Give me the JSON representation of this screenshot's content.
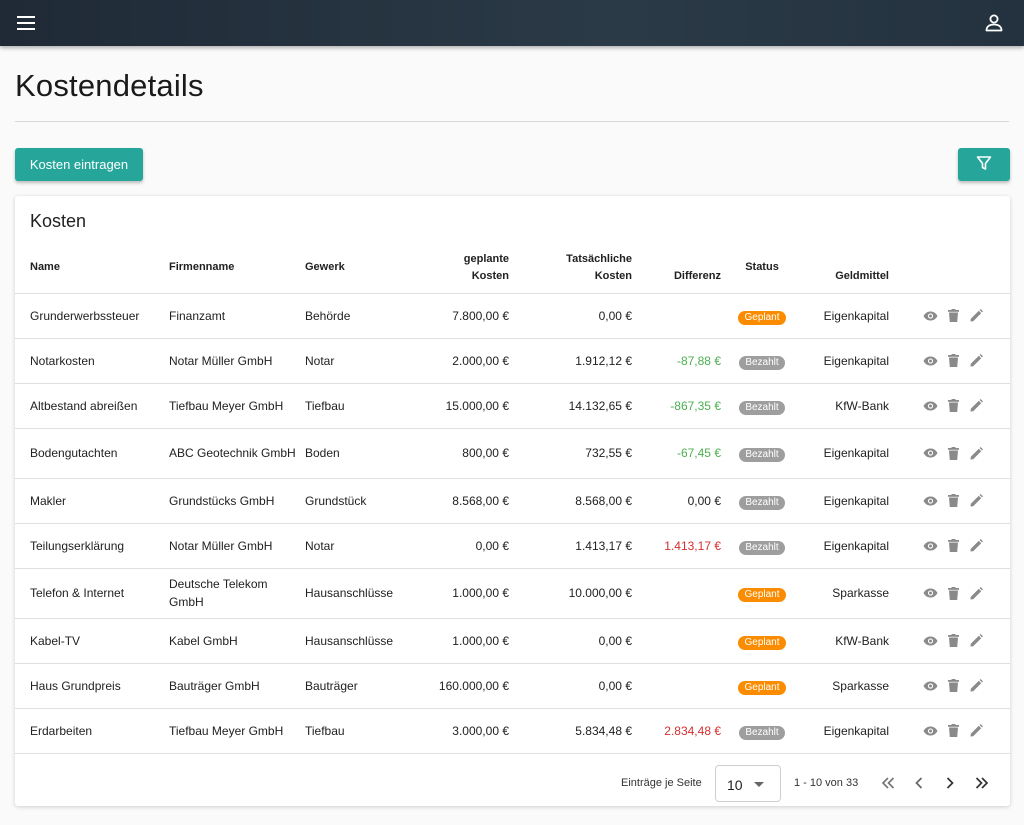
{
  "header": {
    "menu_icon": "menu-icon",
    "account_icon": "account-icon",
    "bar_color": "#243240"
  },
  "page": {
    "title": "Kostendetails"
  },
  "toolbar": {
    "add_label": "Kosten eintragen",
    "filter_icon": "filter-icon",
    "accent": "#26a69a"
  },
  "card": {
    "title": "Kosten"
  },
  "table": {
    "columns": {
      "name": "Name",
      "company": "Firmenname",
      "trade": "Gewerk",
      "planned_1": "geplante",
      "planned_2": "Kosten",
      "actual_1": "Tatsächliche",
      "actual_2": "Kosten",
      "difference": "Differenz",
      "status": "Status",
      "funds": "Geldmittel"
    },
    "rows": [
      {
        "name": "Grunderwerbssteuer",
        "company": "Finanzamt",
        "trade": "Behörde",
        "planned": "7.800,00 €",
        "actual": "0,00 €",
        "difference": "",
        "diff_type": "none",
        "status": "Geplant",
        "status_type": "planned",
        "funds": "Eigenkapital"
      },
      {
        "name": "Notarkosten",
        "company": "Notar Müller GmbH",
        "trade": "Notar",
        "planned": "2.000,00 €",
        "actual": "1.912,12 €",
        "difference": "-87,88 €",
        "diff_type": "green",
        "status": "Bezahlt",
        "status_type": "paid",
        "funds": "Eigenkapital"
      },
      {
        "name": "Altbestand abreißen",
        "company": "Tiefbau Meyer GmbH",
        "trade": "Tiefbau",
        "planned": "15.000,00 €",
        "actual": "14.132,65 €",
        "difference": "-867,35 €",
        "diff_type": "green",
        "status": "Bezahlt",
        "status_type": "paid",
        "funds": "KfW-Bank"
      },
      {
        "name": "Bodengutachten",
        "company": "ABC Geotechnik GmbH",
        "trade": "Boden",
        "planned": "800,00 €",
        "actual": "732,55 €",
        "difference": "-67,45 €",
        "diff_type": "green",
        "status": "Bezahlt",
        "status_type": "paid",
        "funds": "Eigenkapital"
      },
      {
        "name": "Makler",
        "company": "Grundstücks GmbH",
        "trade": "Grundstück",
        "planned": "8.568,00 €",
        "actual": "8.568,00 €",
        "difference": "0,00 €",
        "diff_type": "none",
        "status": "Bezahlt",
        "status_type": "paid",
        "funds": "Eigenkapital"
      },
      {
        "name": "Teilungserklärung",
        "company": "Notar Müller GmbH",
        "trade": "Notar",
        "planned": "0,00 €",
        "actual": "1.413,17 €",
        "difference": "1.413,17 €",
        "diff_type": "red",
        "status": "Bezahlt",
        "status_type": "paid",
        "funds": "Eigenkapital"
      },
      {
        "name": "Telefon & Internet",
        "company": "Deutsche Telekom GmbH",
        "trade": "Hausanschlüsse",
        "planned": "1.000,00 €",
        "actual": "10.000,00 €",
        "difference": "",
        "diff_type": "none",
        "status": "Geplant",
        "status_type": "planned",
        "funds": "Sparkasse"
      },
      {
        "name": "Kabel-TV",
        "company": "Kabel GmbH",
        "trade": "Hausanschlüsse",
        "planned": "1.000,00 €",
        "actual": "0,00 €",
        "difference": "",
        "diff_type": "none",
        "status": "Geplant",
        "status_type": "planned",
        "funds": "KfW-Bank"
      },
      {
        "name": "Haus Grundpreis",
        "company": "Bauträger GmbH",
        "trade": "Bauträger",
        "planned": "160.000,00 €",
        "actual": "0,00 €",
        "difference": "",
        "diff_type": "none",
        "status": "Geplant",
        "status_type": "planned",
        "funds": "Sparkasse"
      },
      {
        "name": "Erdarbeiten",
        "company": "Tiefbau Meyer GmbH",
        "trade": "Tiefbau",
        "planned": "3.000,00 €",
        "actual": "5.834,48 €",
        "difference": "2.834,48 €",
        "diff_type": "red",
        "status": "Bezahlt",
        "status_type": "paid",
        "funds": "Eigenkapital"
      }
    ],
    "row_actions": [
      "view-icon",
      "delete-icon",
      "edit-icon"
    ],
    "colors": {
      "planned": "#fb8c00",
      "paid": "#9e9e9e",
      "negative_diff": "#4caf50",
      "positive_diff": "#d32f2f"
    }
  },
  "paginator": {
    "page_size_label": "Einträge je Seite",
    "page_size": "10",
    "range": "1 - 10 von 33",
    "icons": [
      "first-page-icon",
      "previous-page-icon",
      "next-page-icon",
      "last-page-icon"
    ]
  }
}
